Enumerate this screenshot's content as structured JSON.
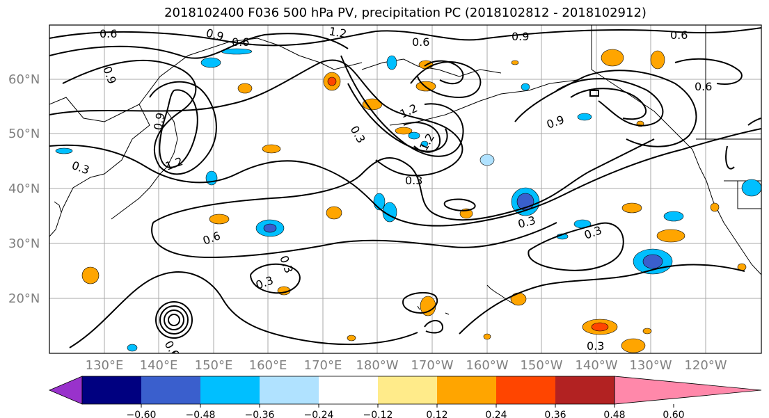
{
  "title": "2018102400 F036 500 hPa PV, precipitation PC (2018102812 - 2018102912)",
  "lat_labels": [
    "60°N",
    "50°N",
    "40°N",
    "30°N",
    "20°N"
  ],
  "lon_labels": [
    "130°E",
    "140°E",
    "150°E",
    "160°E",
    "170°E",
    "180°W",
    "170°W",
    "160°W",
    "150°W",
    "140°W",
    "130°W",
    "120°W"
  ],
  "colorbar": {
    "ticks": [
      "−0.60",
      "−0.48",
      "−0.36",
      "−0.24",
      "−0.12",
      "0.12",
      "0.24",
      "0.36",
      "0.48",
      "0.60"
    ],
    "colors": [
      "#9932cc",
      "#000080",
      "#3a5fcd",
      "#00bfff",
      "#b0e2ff",
      "#ffffff",
      "#ffeb8a",
      "#ffa500",
      "#ff4500",
      "#b22222",
      "#ff88aa"
    ]
  },
  "contour_labels": [
    {
      "text": "0.6"
    },
    {
      "text": "0.6"
    },
    {
      "text": "0.9"
    },
    {
      "text": "1.2"
    },
    {
      "text": "0.6"
    },
    {
      "text": "0.9"
    },
    {
      "text": "0.6"
    },
    {
      "text": "0.9"
    },
    {
      "text": "0.6"
    },
    {
      "text": "1.2"
    },
    {
      "text": "0.3"
    },
    {
      "text": "1.2"
    },
    {
      "text": "0.9"
    },
    {
      "text": "0.3"
    },
    {
      "text": "0.6"
    },
    {
      "text": "0.3"
    },
    {
      "text": "0.3"
    },
    {
      "text": "0.3"
    },
    {
      "text": "0.3"
    },
    {
      "text": "0.3"
    },
    {
      "text": "0.6"
    },
    {
      "text": "0.3"
    },
    {
      "text": "0.9"
    },
    {
      "text": "1.2"
    }
  ]
}
